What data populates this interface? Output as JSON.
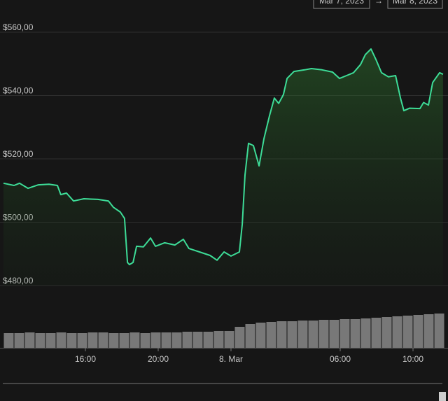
{
  "chart_data": {
    "type": "line",
    "date_range": {
      "from": "Mar 7, 2023",
      "separator": "→",
      "to": "Mar 8, 2023"
    },
    "x": [
      11.5,
      12.08,
      12.38,
      12.85,
      13.42,
      14.0,
      14.46,
      14.65,
      14.96,
      15.35,
      15.92,
      16.69,
      17.27,
      17.54,
      17.92,
      18.15,
      18.31,
      18.42,
      18.62,
      18.81,
      19.19,
      19.58,
      19.85,
      20.35,
      20.92,
      21.38,
      21.69,
      22.27,
      22.85,
      23.23,
      23.62,
      24.0,
      24.46,
      24.62,
      24.77,
      24.96,
      25.23,
      25.54,
      25.81,
      26.12,
      26.38,
      26.62,
      26.88,
      27.08,
      27.46,
      28.04,
      28.42,
      29.0,
      29.58,
      29.96,
      30.35,
      30.73,
      31.12,
      31.38,
      31.69,
      31.96,
      32.27,
      32.65,
      33.04,
      33.31,
      33.5,
      33.81,
      34.38,
      34.58,
      34.85,
      35.08,
      35.46,
      35.65
    ],
    "values": [
      512.3,
      511.6,
      512.3,
      510.7,
      511.8,
      512,
      511.6,
      508.7,
      509.2,
      506.7,
      507.4,
      507.2,
      506.7,
      504.7,
      503.2,
      501.2,
      487.3,
      486.6,
      487.3,
      492.4,
      492.2,
      495.0,
      492.4,
      493.5,
      492.8,
      494.6,
      491.7,
      490.6,
      489.5,
      488.0,
      490.6,
      489.3,
      490.6,
      499.4,
      514.9,
      524.9,
      524.2,
      517.8,
      526.4,
      533.7,
      539.2,
      537.5,
      540.3,
      545.4,
      547.6,
      548.1,
      548.5,
      548.1,
      547.4,
      545.4,
      546.3,
      547.2,
      549.8,
      552.9,
      554.7,
      551.4,
      547.2,
      545.9,
      546.3,
      539.2,
      535.2,
      536.0,
      535.9,
      537.8,
      537.0,
      544.1,
      547.2,
      546.7
    ],
    "color": "#3ddc97",
    "xlim": [
      11.5,
      35.73
    ],
    "xticks": [
      {
        "value": 16,
        "label": "16:00"
      },
      {
        "value": 20,
        "label": "20:00"
      },
      {
        "value": 24,
        "label": "8. Mar"
      },
      {
        "value": 30,
        "label": "06:00"
      },
      {
        "value": 34,
        "label": "10:00"
      }
    ],
    "ylim": [
      480,
      560
    ],
    "yticks": [
      {
        "value": 480,
        "label": "$480,00"
      },
      {
        "value": 500,
        "label": "$500,00"
      },
      {
        "value": 520,
        "label": "$520,00"
      },
      {
        "value": 540,
        "label": "$540,00"
      },
      {
        "value": 560,
        "label": "$560,00"
      }
    ],
    "grid": true,
    "volume": {
      "color": "#9a9a9a",
      "lim": [
        0,
        60
      ],
      "values": [
        21,
        21,
        22,
        21,
        21,
        22,
        21,
        21,
        22,
        22,
        21,
        21,
        22,
        21,
        22,
        22,
        22,
        23,
        23,
        23,
        24,
        24,
        30,
        34,
        36,
        37,
        38,
        38,
        39,
        39,
        40,
        40,
        41,
        41,
        42,
        43,
        44,
        45,
        46,
        47,
        48,
        49
      ]
    }
  }
}
